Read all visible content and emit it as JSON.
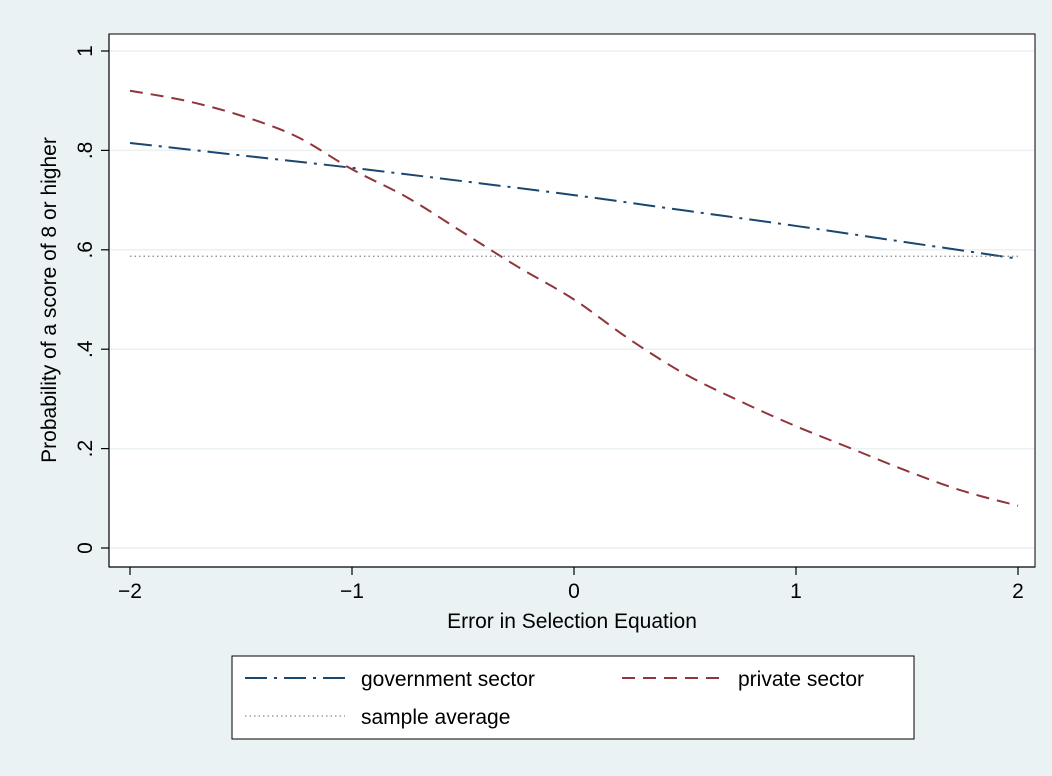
{
  "chart_data": {
    "type": "line",
    "title": "",
    "xlabel": "Error in Selection Equation",
    "ylabel": "Probability of a score of 8 or higher",
    "xlim": [
      -2,
      2
    ],
    "ylim": [
      0,
      1
    ],
    "x_ticks": [
      -2,
      -1,
      0,
      1,
      2
    ],
    "x_tick_labels": [
      "−2",
      "−1",
      "0",
      "1",
      "2"
    ],
    "y_ticks": [
      0,
      0.2,
      0.4,
      0.6,
      0.8,
      1
    ],
    "y_tick_labels": [
      "0",
      ".2",
      ".4",
      ".6",
      ".8",
      "1"
    ],
    "grid": true,
    "legend_position": "bottom",
    "series": [
      {
        "name": "government sector",
        "color": "#1a476f",
        "dash": "dash-dot",
        "x": [
          -2,
          -1.5,
          -1,
          -0.5,
          0,
          0.5,
          1,
          1.5,
          2
        ],
        "y": [
          0.815,
          0.79,
          0.765,
          0.738,
          0.71,
          0.679,
          0.648,
          0.615,
          0.582
        ]
      },
      {
        "name": "private sector",
        "color": "#90353b",
        "dash": "dash",
        "x": [
          -2,
          -1.75,
          -1.5,
          -1.25,
          -1,
          -0.75,
          -0.5,
          -0.25,
          0,
          0.25,
          0.5,
          0.75,
          1,
          1.25,
          1.5,
          1.75,
          2
        ],
        "y": [
          0.92,
          0.9,
          0.87,
          0.828,
          0.762,
          0.705,
          0.635,
          0.565,
          0.5,
          0.42,
          0.35,
          0.295,
          0.245,
          0.2,
          0.155,
          0.115,
          0.085
        ]
      },
      {
        "name": "sample average",
        "color": "#888888",
        "dash": "dot",
        "x": [
          -2,
          2
        ],
        "y": [
          0.587,
          0.587
        ]
      }
    ]
  }
}
